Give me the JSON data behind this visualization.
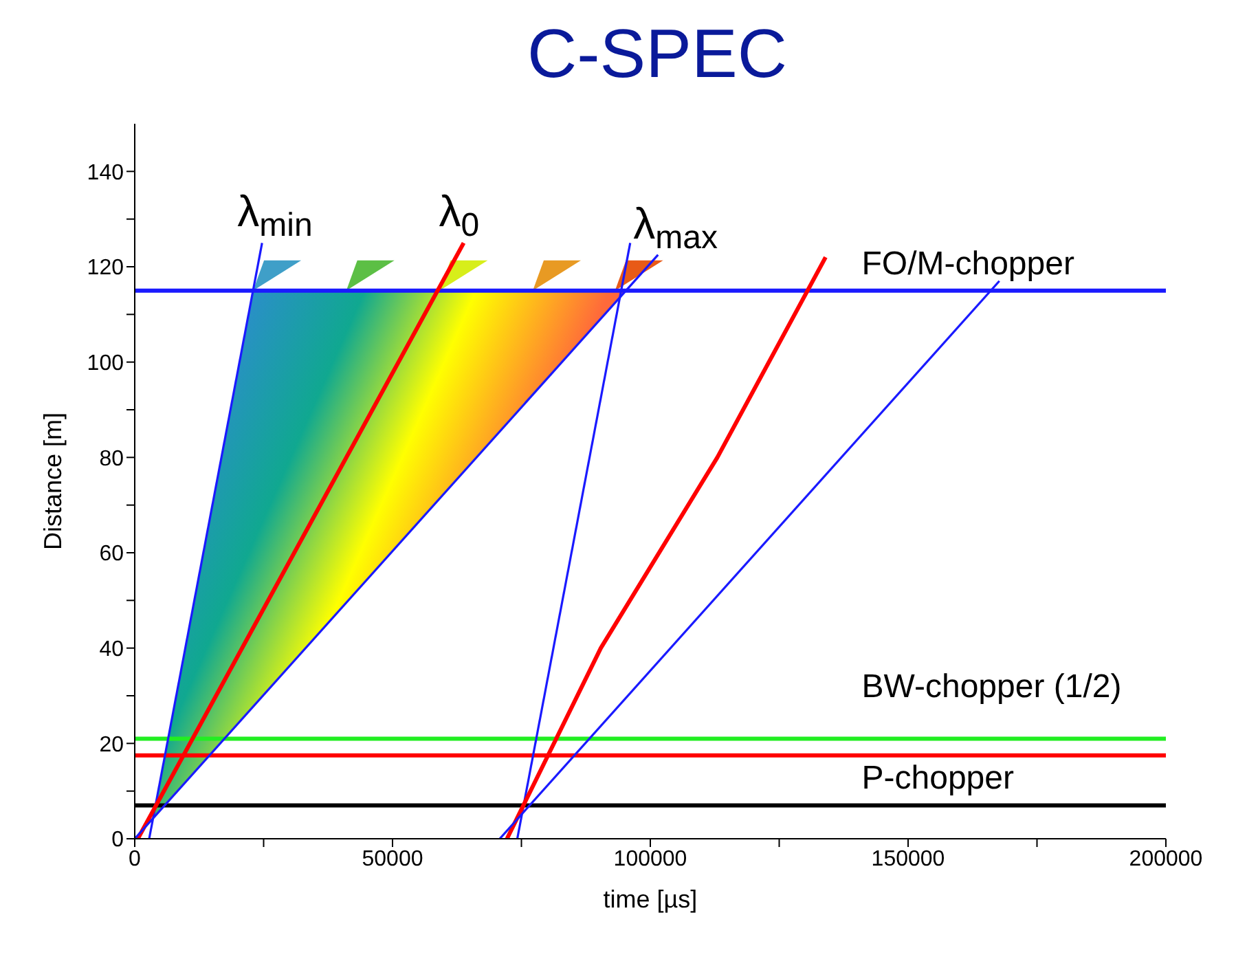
{
  "chart_data": {
    "type": "line",
    "title": "C-SPEC",
    "xlabel": "time [µs]",
    "ylabel": "Distance [m]",
    "xlim": [
      0,
      200000
    ],
    "ylim": [
      0,
      150
    ],
    "xticks": [
      0,
      {
        "value": 25000,
        "label": null
      },
      50000,
      {
        "value": 75000,
        "label": null
      },
      100000,
      {
        "value": 125000,
        "label": null
      },
      150000,
      {
        "value": 175000,
        "label": null
      },
      200000
    ],
    "yticks": [
      0,
      {
        "value": 10,
        "label": null
      },
      20,
      {
        "value": 30,
        "label": null
      },
      40,
      {
        "value": 50,
        "label": null
      },
      60,
      {
        "value": 70,
        "label": null
      },
      80,
      {
        "value": 90,
        "label": null
      },
      100,
      {
        "value": 110,
        "label": null
      },
      120,
      {
        "value": 130,
        "label": null
      },
      140
    ],
    "marker": "none",
    "line_style": "solid",
    "series": [
      {
        "name": "λ$_{min}$",
        "color": "#1a1aff",
        "x": [
          2800,
          24700
        ],
        "values": [
          0,
          125
        ]
      },
      {
        "name": "λ$_{0}$",
        "color": "#ff0000",
        "x": [
          600,
          63800
        ],
        "values": [
          0,
          125
        ]
      },
      {
        "name": "λ$_{max}$",
        "color": "#1a1aff",
        "x": [
          0,
          101500
        ],
        "values": [
          0,
          122.5
        ]
      },
      {
        "color": "#1a1aff",
        "x": [
          74200,
          96100
        ],
        "values": [
          0,
          125
        ]
      },
      {
        "color": "#ff0000",
        "x": [
          72200,
          90400,
          113000,
          134000
        ],
        "values": [
          0,
          40,
          80,
          122
        ]
      },
      {
        "color": "#1a1aff",
        "x": [
          70800,
          167700
        ],
        "values": [
          0,
          117
        ]
      }
    ],
    "ref_lines": [
      {
        "axis": "y",
        "value": 115,
        "label": "FO/M-chopper",
        "color": "#1a1aff"
      },
      {
        "axis": "y",
        "value": 21,
        "label": "BW-chopper (1/2)",
        "color": "#22ee22"
      },
      {
        "axis": "y",
        "value": 17.5,
        "label": null,
        "color": "#ff0000"
      },
      {
        "axis": "y",
        "value": 7,
        "label": "P-chopper",
        "color": "#000000"
      }
    ]
  }
}
